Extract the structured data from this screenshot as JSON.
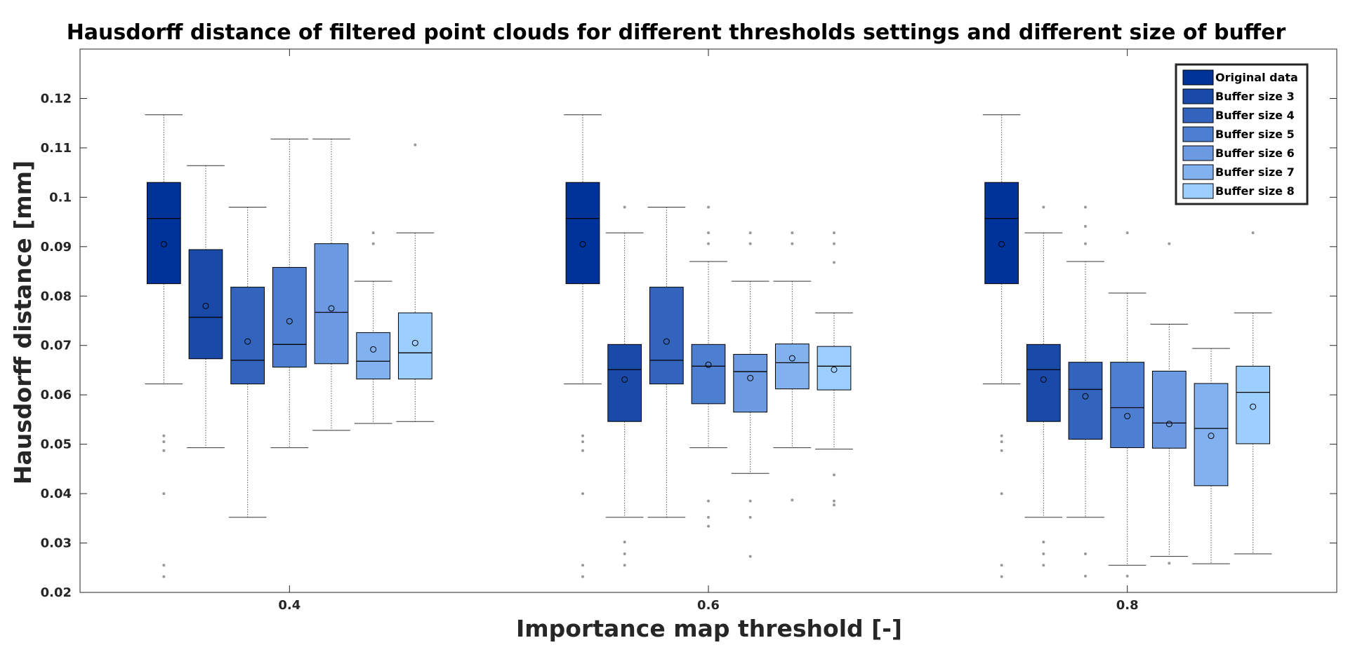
{
  "chart_data": {
    "type": "box",
    "title": "Hausdorff distance of filtered point clouds for different thresholds settings and different size of buffer",
    "xlabel": "Importance map threshold [-]",
    "ylabel": "Hausdorff distance [mm]",
    "ylim": [
      0.02,
      0.13
    ],
    "xlim": [
      0.3,
      0.9
    ],
    "yticks": [
      "0.02",
      "0.03",
      "0.04",
      "0.05",
      "0.06",
      "0.07",
      "0.08",
      "0.09",
      "0.1",
      "0.11",
      "0.12"
    ],
    "xticks": [
      "0.4",
      "0.6",
      "0.8"
    ],
    "legend_position": "top-right",
    "series": [
      {
        "name": "Original data",
        "color": "#003399"
      },
      {
        "name": "Buffer size 3",
        "color": "#1a4aa8"
      },
      {
        "name": "Buffer size 4",
        "color": "#3264bd"
      },
      {
        "name": "Buffer size 5",
        "color": "#4d7fd1"
      },
      {
        "name": "Buffer size 6",
        "color": "#6b9ae2"
      },
      {
        "name": "Buffer size 7",
        "color": "#82b1ef"
      },
      {
        "name": "Buffer size 8",
        "color": "#9ccfff"
      }
    ],
    "groups": [
      {
        "threshold": "0.4",
        "boxes": [
          {
            "series": 0,
            "q1": 0.0825,
            "median": 0.0957,
            "q3": 0.103,
            "whislo": 0.0622,
            "whishi": 0.1167,
            "mean": 0.0905,
            "fliers": [
              0.0517,
              0.0505,
              0.0487,
              0.04,
              0.0255,
              0.0232
            ]
          },
          {
            "series": 1,
            "q1": 0.0673,
            "median": 0.0757,
            "q3": 0.0894,
            "whislo": 0.0493,
            "whishi": 0.1064,
            "mean": 0.078,
            "fliers": []
          },
          {
            "series": 2,
            "q1": 0.0622,
            "median": 0.067,
            "q3": 0.0818,
            "whislo": 0.0352,
            "whishi": 0.098,
            "mean": 0.0708,
            "fliers": []
          },
          {
            "series": 3,
            "q1": 0.0656,
            "median": 0.0702,
            "q3": 0.0858,
            "whislo": 0.0493,
            "whishi": 0.1118,
            "mean": 0.0749,
            "fliers": []
          },
          {
            "series": 4,
            "q1": 0.0663,
            "median": 0.0767,
            "q3": 0.0906,
            "whislo": 0.0528,
            "whishi": 0.1118,
            "mean": 0.0775,
            "fliers": []
          },
          {
            "series": 5,
            "q1": 0.0632,
            "median": 0.0668,
            "q3": 0.0726,
            "whislo": 0.0542,
            "whishi": 0.083,
            "mean": 0.0692,
            "fliers": [
              0.0928,
              0.0906
            ]
          },
          {
            "series": 6,
            "q1": 0.0632,
            "median": 0.0685,
            "q3": 0.0766,
            "whislo": 0.0546,
            "whishi": 0.0928,
            "mean": 0.0705,
            "fliers": [
              0.1106
            ]
          }
        ]
      },
      {
        "threshold": "0.6",
        "boxes": [
          {
            "series": 0,
            "q1": 0.0825,
            "median": 0.0957,
            "q3": 0.103,
            "whislo": 0.0622,
            "whishi": 0.1167,
            "mean": 0.0905,
            "fliers": [
              0.0517,
              0.0505,
              0.0487,
              0.04,
              0.0255,
              0.0232
            ]
          },
          {
            "series": 1,
            "q1": 0.0546,
            "median": 0.0651,
            "q3": 0.0702,
            "whislo": 0.0352,
            "whishi": 0.0928,
            "mean": 0.0631,
            "fliers": [
              0.098,
              0.0302,
              0.0278,
              0.0255
            ]
          },
          {
            "series": 2,
            "q1": 0.0622,
            "median": 0.067,
            "q3": 0.0818,
            "whislo": 0.0352,
            "whishi": 0.098,
            "mean": 0.0708,
            "fliers": []
          },
          {
            "series": 3,
            "q1": 0.0582,
            "median": 0.0658,
            "q3": 0.0702,
            "whislo": 0.0493,
            "whishi": 0.087,
            "mean": 0.0661,
            "fliers": [
              0.098,
              0.0928,
              0.0906,
              0.0385,
              0.0352,
              0.0334
            ]
          },
          {
            "series": 4,
            "q1": 0.0565,
            "median": 0.0647,
            "q3": 0.0682,
            "whislo": 0.0441,
            "whishi": 0.083,
            "mean": 0.0634,
            "fliers": [
              0.0928,
              0.0906,
              0.0385,
              0.0352,
              0.0273
            ]
          },
          {
            "series": 5,
            "q1": 0.0612,
            "median": 0.0665,
            "q3": 0.0703,
            "whislo": 0.0493,
            "whishi": 0.083,
            "mean": 0.0674,
            "fliers": [
              0.0928,
              0.0906,
              0.0387
            ]
          },
          {
            "series": 6,
            "q1": 0.061,
            "median": 0.0658,
            "q3": 0.0698,
            "whislo": 0.049,
            "whishi": 0.0766,
            "mean": 0.0651,
            "fliers": [
              0.0928,
              0.0906,
              0.0868,
              0.0438,
              0.0385,
              0.0377
            ]
          }
        ]
      },
      {
        "threshold": "0.8",
        "boxes": [
          {
            "series": 0,
            "q1": 0.0825,
            "median": 0.0957,
            "q3": 0.103,
            "whislo": 0.0622,
            "whishi": 0.1167,
            "mean": 0.0905,
            "fliers": [
              0.0517,
              0.0505,
              0.0487,
              0.04,
              0.0255,
              0.0232
            ]
          },
          {
            "series": 1,
            "q1": 0.0546,
            "median": 0.0651,
            "q3": 0.0702,
            "whislo": 0.0352,
            "whishi": 0.0928,
            "mean": 0.0631,
            "fliers": [
              0.098,
              0.0302,
              0.0278,
              0.0255
            ]
          },
          {
            "series": 2,
            "q1": 0.051,
            "median": 0.0611,
            "q3": 0.0666,
            "whislo": 0.0352,
            "whishi": 0.087,
            "mean": 0.0597,
            "fliers": [
              0.098,
              0.0941,
              0.0906,
              0.0278,
              0.0233
            ]
          },
          {
            "series": 3,
            "q1": 0.0493,
            "median": 0.0574,
            "q3": 0.0666,
            "whislo": 0.0255,
            "whishi": 0.0806,
            "mean": 0.0557,
            "fliers": [
              0.0928,
              0.0233
            ]
          },
          {
            "series": 4,
            "q1": 0.0492,
            "median": 0.0543,
            "q3": 0.0648,
            "whislo": 0.0273,
            "whishi": 0.0743,
            "mean": 0.0541,
            "fliers": [
              0.0906,
              0.0259
            ]
          },
          {
            "series": 5,
            "q1": 0.0416,
            "median": 0.0532,
            "q3": 0.0623,
            "whislo": 0.0258,
            "whishi": 0.0694,
            "mean": 0.0517,
            "fliers": []
          },
          {
            "series": 6,
            "q1": 0.0501,
            "median": 0.0605,
            "q3": 0.0658,
            "whislo": 0.0278,
            "whishi": 0.0766,
            "mean": 0.0576,
            "fliers": [
              0.0928
            ]
          }
        ]
      }
    ]
  }
}
